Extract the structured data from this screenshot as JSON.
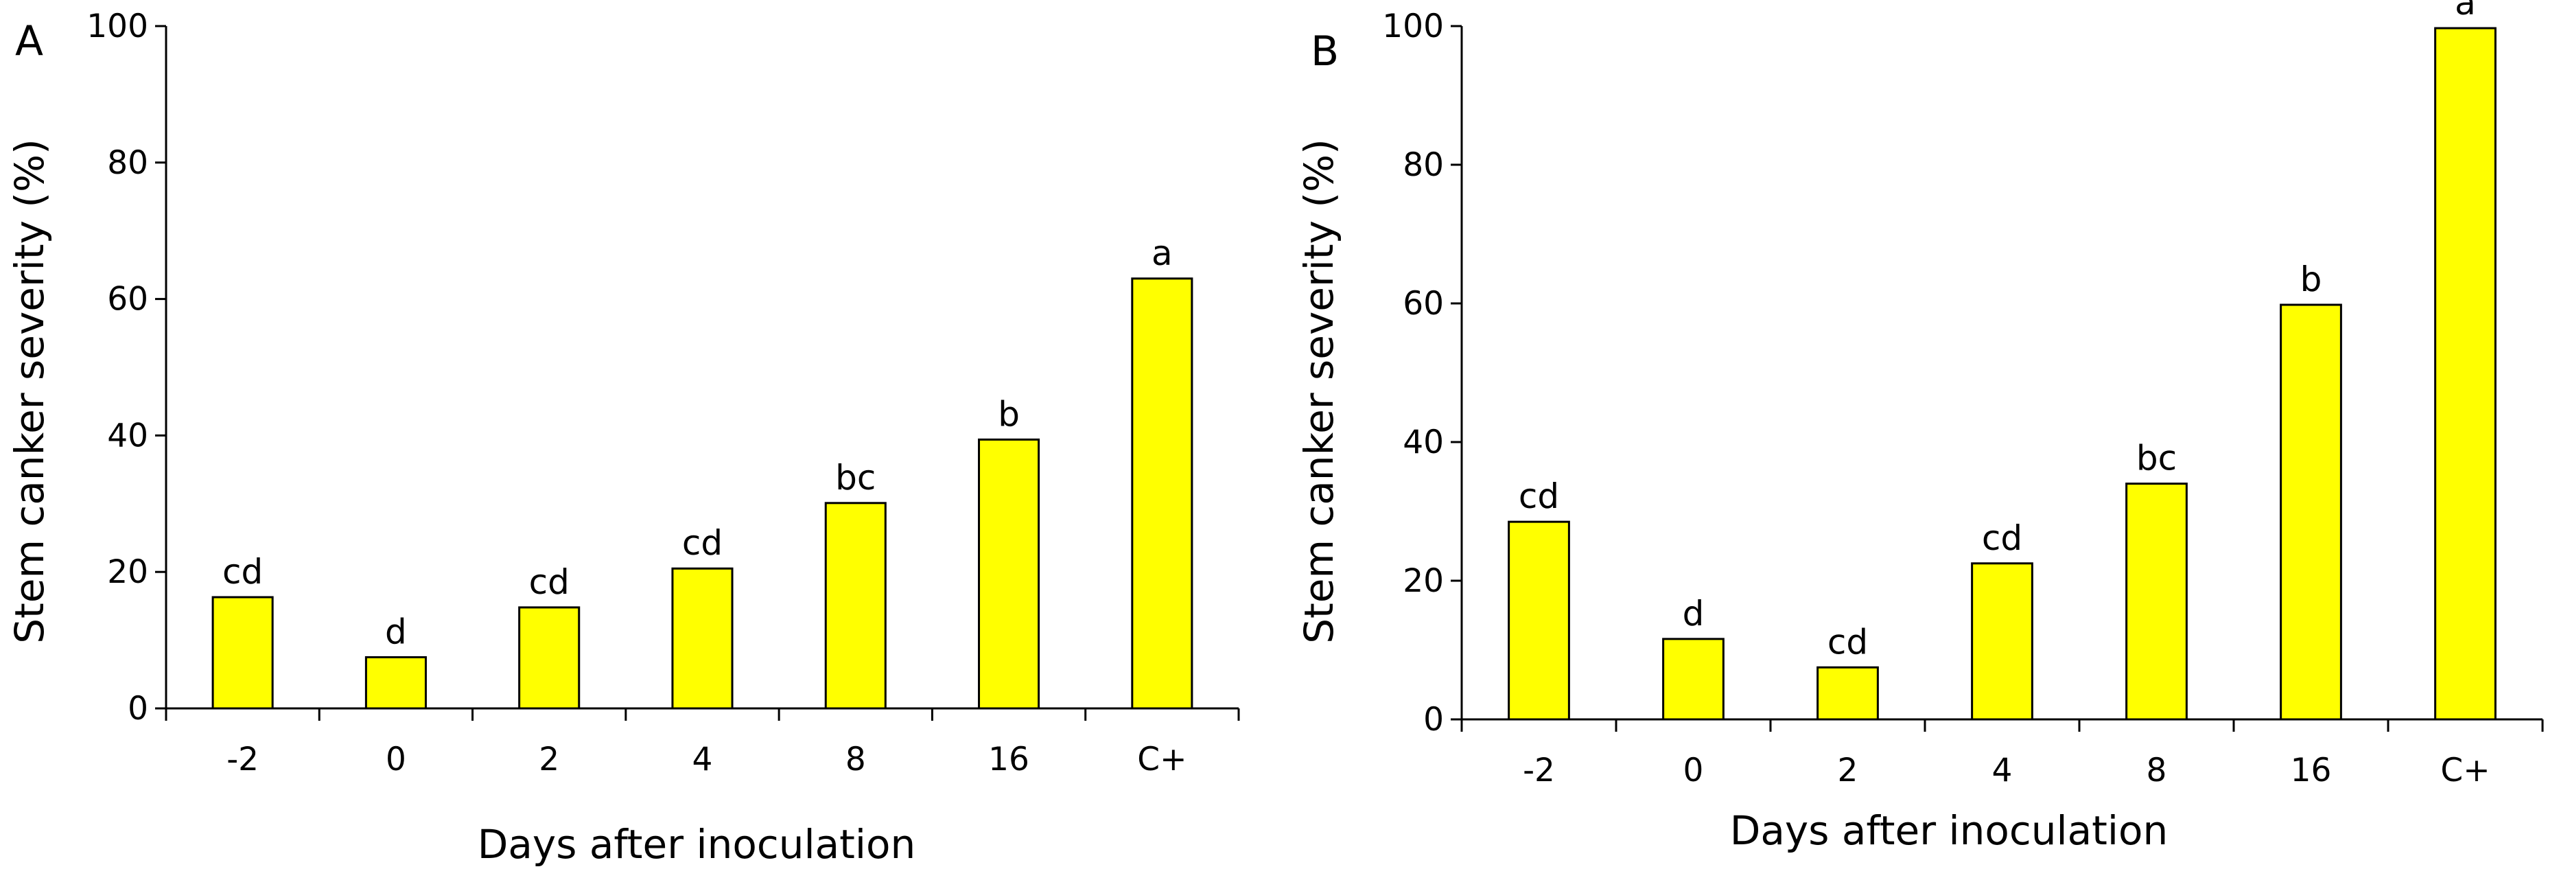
{
  "colors": {
    "bar_fill": "#ffff00",
    "bar_stroke": "#000000",
    "axis": "#000000",
    "background": "#ffffff"
  },
  "chart_data": [
    {
      "type": "bar",
      "panel_label": "A",
      "xlabel": "Days after inoculation",
      "ylabel": "Stem canker severity (%)",
      "ylim": [
        0,
        100
      ],
      "yticks": [
        "0",
        "20",
        "40",
        "60",
        "80",
        "100"
      ],
      "categories": [
        "-2",
        "0",
        "2",
        "4",
        "8",
        "16",
        "C+"
      ],
      "values": [
        16.3,
        7.5,
        14.8,
        20.5,
        30.1,
        39.4,
        63.0
      ],
      "significance": [
        "cd",
        "d",
        "cd",
        "cd",
        "bc",
        "b",
        "a"
      ]
    },
    {
      "type": "bar",
      "panel_label": "B",
      "xlabel": "Days after inoculation",
      "ylabel": "Stem canker severity (%)",
      "ylim": [
        0,
        100
      ],
      "yticks": [
        "0",
        "20",
        "40",
        "60",
        "80",
        "100"
      ],
      "categories": [
        "-2",
        "0",
        "2",
        "4",
        "8",
        "16",
        "C+"
      ],
      "values": [
        28.5,
        11.6,
        7.5,
        22.5,
        34.0,
        59.8,
        99.7
      ],
      "significance": [
        "cd",
        "d",
        "cd",
        "cd",
        "bc",
        "b",
        "a"
      ]
    }
  ]
}
